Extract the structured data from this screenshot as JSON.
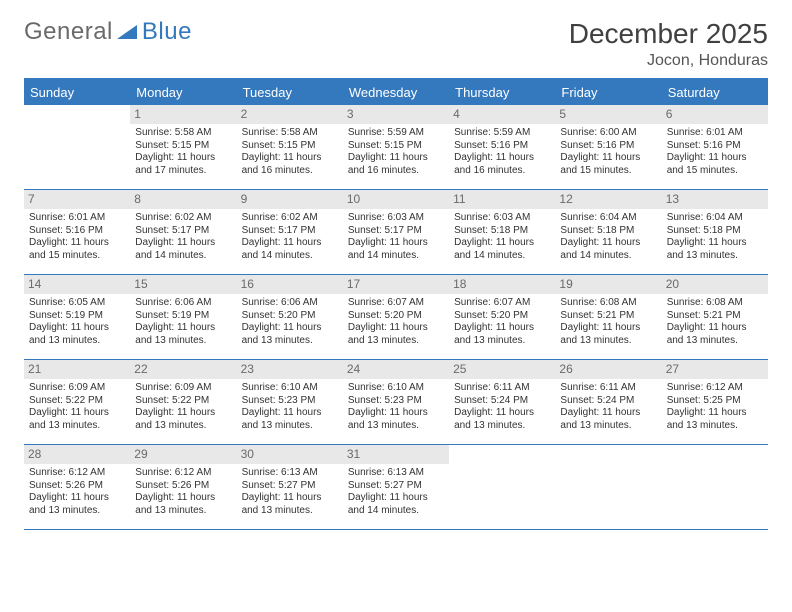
{
  "logo": {
    "text1": "General",
    "text2": "Blue"
  },
  "title": "December 2025",
  "location": "Jocon, Honduras",
  "colors": {
    "header_bg": "#3478bd",
    "daynum_bg": "#e8e8e8",
    "text": "#333333",
    "border": "#3478bd",
    "background": "#ffffff"
  },
  "typography": {
    "header_fontsize": 28,
    "location_fontsize": 16,
    "dayhead_fontsize": 13,
    "cell_fontsize": 10
  },
  "days": [
    "Sunday",
    "Monday",
    "Tuesday",
    "Wednesday",
    "Thursday",
    "Friday",
    "Saturday"
  ],
  "weeks": [
    [
      {
        "n": "",
        "sr": "",
        "ss": "",
        "dl": ""
      },
      {
        "n": "1",
        "sr": "5:58 AM",
        "ss": "5:15 PM",
        "dl": "11 hours and 17 minutes."
      },
      {
        "n": "2",
        "sr": "5:58 AM",
        "ss": "5:15 PM",
        "dl": "11 hours and 16 minutes."
      },
      {
        "n": "3",
        "sr": "5:59 AM",
        "ss": "5:15 PM",
        "dl": "11 hours and 16 minutes."
      },
      {
        "n": "4",
        "sr": "5:59 AM",
        "ss": "5:16 PM",
        "dl": "11 hours and 16 minutes."
      },
      {
        "n": "5",
        "sr": "6:00 AM",
        "ss": "5:16 PM",
        "dl": "11 hours and 15 minutes."
      },
      {
        "n": "6",
        "sr": "6:01 AM",
        "ss": "5:16 PM",
        "dl": "11 hours and 15 minutes."
      }
    ],
    [
      {
        "n": "7",
        "sr": "6:01 AM",
        "ss": "5:16 PM",
        "dl": "11 hours and 15 minutes."
      },
      {
        "n": "8",
        "sr": "6:02 AM",
        "ss": "5:17 PM",
        "dl": "11 hours and 14 minutes."
      },
      {
        "n": "9",
        "sr": "6:02 AM",
        "ss": "5:17 PM",
        "dl": "11 hours and 14 minutes."
      },
      {
        "n": "10",
        "sr": "6:03 AM",
        "ss": "5:17 PM",
        "dl": "11 hours and 14 minutes."
      },
      {
        "n": "11",
        "sr": "6:03 AM",
        "ss": "5:18 PM",
        "dl": "11 hours and 14 minutes."
      },
      {
        "n": "12",
        "sr": "6:04 AM",
        "ss": "5:18 PM",
        "dl": "11 hours and 14 minutes."
      },
      {
        "n": "13",
        "sr": "6:04 AM",
        "ss": "5:18 PM",
        "dl": "11 hours and 13 minutes."
      }
    ],
    [
      {
        "n": "14",
        "sr": "6:05 AM",
        "ss": "5:19 PM",
        "dl": "11 hours and 13 minutes."
      },
      {
        "n": "15",
        "sr": "6:06 AM",
        "ss": "5:19 PM",
        "dl": "11 hours and 13 minutes."
      },
      {
        "n": "16",
        "sr": "6:06 AM",
        "ss": "5:20 PM",
        "dl": "11 hours and 13 minutes."
      },
      {
        "n": "17",
        "sr": "6:07 AM",
        "ss": "5:20 PM",
        "dl": "11 hours and 13 minutes."
      },
      {
        "n": "18",
        "sr": "6:07 AM",
        "ss": "5:20 PM",
        "dl": "11 hours and 13 minutes."
      },
      {
        "n": "19",
        "sr": "6:08 AM",
        "ss": "5:21 PM",
        "dl": "11 hours and 13 minutes."
      },
      {
        "n": "20",
        "sr": "6:08 AM",
        "ss": "5:21 PM",
        "dl": "11 hours and 13 minutes."
      }
    ],
    [
      {
        "n": "21",
        "sr": "6:09 AM",
        "ss": "5:22 PM",
        "dl": "11 hours and 13 minutes."
      },
      {
        "n": "22",
        "sr": "6:09 AM",
        "ss": "5:22 PM",
        "dl": "11 hours and 13 minutes."
      },
      {
        "n": "23",
        "sr": "6:10 AM",
        "ss": "5:23 PM",
        "dl": "11 hours and 13 minutes."
      },
      {
        "n": "24",
        "sr": "6:10 AM",
        "ss": "5:23 PM",
        "dl": "11 hours and 13 minutes."
      },
      {
        "n": "25",
        "sr": "6:11 AM",
        "ss": "5:24 PM",
        "dl": "11 hours and 13 minutes."
      },
      {
        "n": "26",
        "sr": "6:11 AM",
        "ss": "5:24 PM",
        "dl": "11 hours and 13 minutes."
      },
      {
        "n": "27",
        "sr": "6:12 AM",
        "ss": "5:25 PM",
        "dl": "11 hours and 13 minutes."
      }
    ],
    [
      {
        "n": "28",
        "sr": "6:12 AM",
        "ss": "5:26 PM",
        "dl": "11 hours and 13 minutes."
      },
      {
        "n": "29",
        "sr": "6:12 AM",
        "ss": "5:26 PM",
        "dl": "11 hours and 13 minutes."
      },
      {
        "n": "30",
        "sr": "6:13 AM",
        "ss": "5:27 PM",
        "dl": "11 hours and 13 minutes."
      },
      {
        "n": "31",
        "sr": "6:13 AM",
        "ss": "5:27 PM",
        "dl": "11 hours and 14 minutes."
      },
      {
        "n": "",
        "sr": "",
        "ss": "",
        "dl": ""
      },
      {
        "n": "",
        "sr": "",
        "ss": "",
        "dl": ""
      },
      {
        "n": "",
        "sr": "",
        "ss": "",
        "dl": ""
      }
    ]
  ],
  "labels": {
    "sunrise": "Sunrise:",
    "sunset": "Sunset:",
    "daylight": "Daylight:"
  }
}
